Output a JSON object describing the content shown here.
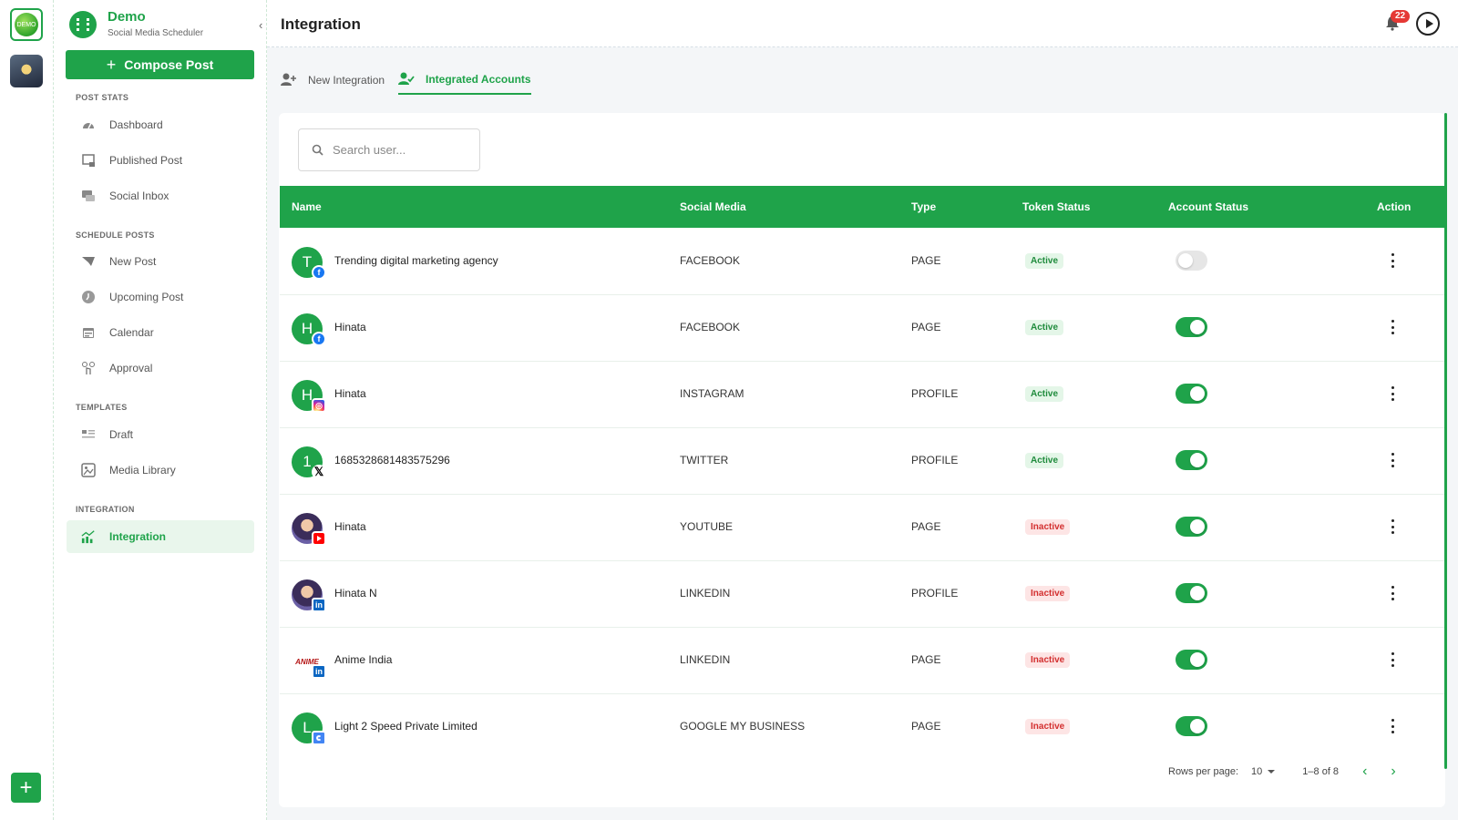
{
  "rail": {
    "demo_label": "DEMO"
  },
  "brand": {
    "title": "Demo",
    "subtitle": "Social Media Scheduler"
  },
  "compose_label": "Compose Post",
  "sections": {
    "post_stats": "POST STATS",
    "schedule_posts": "SCHEDULE POSTS",
    "templates": "TEMPLATES",
    "integration": "INTEGRATION"
  },
  "nav": {
    "dashboard": "Dashboard",
    "published_post": "Published Post",
    "social_inbox": "Social Inbox",
    "new_post": "New Post",
    "upcoming_post": "Upcoming Post",
    "calendar": "Calendar",
    "approval": "Approval",
    "draft": "Draft",
    "media_library": "Media Library",
    "integration": "Integration"
  },
  "header": {
    "title": "Integration",
    "notification_count": "22"
  },
  "tabs": {
    "new_integration": "New Integration",
    "integrated_accounts": "Integrated Accounts"
  },
  "search": {
    "placeholder": "Search user..."
  },
  "table": {
    "columns": {
      "name": "Name",
      "social_media": "Social Media",
      "type": "Type",
      "token_status": "Token Status",
      "account_status": "Account Status",
      "action": "Action"
    },
    "rows": [
      {
        "initial": "T",
        "name": "Trending digital marketing agency",
        "social_media": "FACEBOOK",
        "type": "PAGE",
        "token_status": "Active",
        "account_enabled": false,
        "social_icon": "facebook-icon"
      },
      {
        "initial": "H",
        "name": "Hinata",
        "social_media": "FACEBOOK",
        "type": "PAGE",
        "token_status": "Active",
        "account_enabled": true,
        "social_icon": "facebook-icon"
      },
      {
        "initial": "H",
        "name": "Hinata",
        "social_media": "INSTAGRAM",
        "type": "PROFILE",
        "token_status": "Active",
        "account_enabled": true,
        "social_icon": "instagram-icon"
      },
      {
        "initial": "1",
        "name": "1685328681483575296",
        "social_media": "TWITTER",
        "type": "PROFILE",
        "token_status": "Active",
        "account_enabled": true,
        "social_icon": "x-icon"
      },
      {
        "initial": "",
        "name": "Hinata",
        "social_media": "YOUTUBE",
        "type": "PAGE",
        "token_status": "Inactive",
        "account_enabled": true,
        "social_icon": "youtube-icon"
      },
      {
        "initial": "",
        "name": "Hinata N",
        "social_media": "LINKEDIN",
        "type": "PROFILE",
        "token_status": "Inactive",
        "account_enabled": true,
        "social_icon": "linkedin-icon"
      },
      {
        "initial": "ANIME",
        "name": "Anime India",
        "social_media": "LINKEDIN",
        "type": "PAGE",
        "token_status": "Inactive",
        "account_enabled": true,
        "social_icon": "linkedin-icon"
      },
      {
        "initial": "L",
        "name": "Light 2 Speed Private Limited",
        "social_media": "GOOGLE MY BUSINESS",
        "type": "PAGE",
        "token_status": "Inactive",
        "account_enabled": true,
        "social_icon": "google-my-business-icon"
      }
    ]
  },
  "pagination": {
    "rows_per_page_label": "Rows per page:",
    "rows_per_page": "10",
    "range": "1–8 of 8"
  },
  "colors": {
    "accent": "#1fa34a",
    "active_pill": "#e4f6e8",
    "inactive_pill": "#fde5e5"
  }
}
